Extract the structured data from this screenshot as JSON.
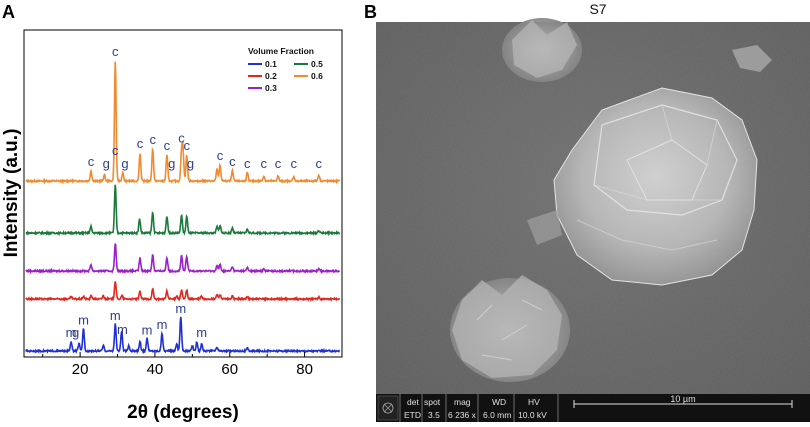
{
  "panel_a": {
    "letter": "A",
    "chart_data": {
      "type": "line",
      "xlabel": "2θ (degrees)",
      "ylabel": "Intensity (a.u.)",
      "xlim": [
        5,
        90
      ],
      "xticks": [
        20,
        40,
        60,
        80
      ],
      "legend": {
        "title": "Volume Fraction",
        "placement": "top-right",
        "entries": [
          {
            "name": "0.1",
            "color": "#1f2fd6"
          },
          {
            "name": "0.5",
            "color": "#1a7a3c"
          },
          {
            "name": "0.2",
            "color": "#e3261e"
          },
          {
            "name": "0.6",
            "color": "#f28a2e"
          },
          {
            "name": "0.3",
            "color": "#9b20c8"
          }
        ]
      },
      "series": [
        {
          "name": "0.6",
          "color": "#f28a2e",
          "peaks": [
            [
              22.9,
              10
            ],
            [
              26.5,
              6
            ],
            [
              29.4,
              120
            ],
            [
              31.4,
              8
            ],
            [
              36.0,
              28
            ],
            [
              39.4,
              32
            ],
            [
              43.2,
              26
            ],
            [
              47.1,
              28
            ],
            [
              47.5,
              30
            ],
            [
              48.5,
              26
            ],
            [
              56.6,
              12
            ],
            [
              57.4,
              16
            ],
            [
              60.7,
              10
            ],
            [
              64.7,
              8
            ],
            [
              69.1,
              5
            ],
            [
              72.9,
              5
            ],
            [
              77.1,
              4
            ],
            [
              83.8,
              6
            ]
          ]
        },
        {
          "name": "0.5",
          "color": "#1a7a3c",
          "peaks": [
            [
              22.9,
              10
            ],
            [
              29.4,
              75
            ],
            [
              35.9,
              22
            ],
            [
              39.4,
              32
            ],
            [
              43.2,
              26
            ],
            [
              47.1,
              28
            ],
            [
              48.5,
              26
            ],
            [
              56.6,
              10
            ],
            [
              57.4,
              12
            ],
            [
              60.7,
              8
            ],
            [
              64.7,
              6
            ],
            [
              83.8,
              4
            ]
          ]
        },
        {
          "name": "0.3",
          "color": "#9b20c8",
          "peaks": [
            [
              22.9,
              12
            ],
            [
              29.4,
              52
            ],
            [
              36.0,
              24
            ],
            [
              39.4,
              30
            ],
            [
              43.2,
              25
            ],
            [
              47.1,
              28
            ],
            [
              48.5,
              27
            ],
            [
              56.6,
              10
            ],
            [
              57.4,
              12
            ],
            [
              60.7,
              8
            ],
            [
              64.7,
              6
            ],
            [
              69.1,
              4
            ],
            [
              83.8,
              4
            ]
          ]
        },
        {
          "name": "0.2",
          "color": "#e3261e",
          "peaks": [
            [
              17.6,
              4
            ],
            [
              20.9,
              5
            ],
            [
              23.0,
              6
            ],
            [
              26.2,
              6
            ],
            [
              29.4,
              32
            ],
            [
              31.2,
              6
            ],
            [
              36.0,
              14
            ],
            [
              39.4,
              18
            ],
            [
              43.2,
              14
            ],
            [
              45.8,
              6
            ],
            [
              47.1,
              16
            ],
            [
              48.5,
              16
            ],
            [
              52.4,
              5
            ],
            [
              56.6,
              8
            ],
            [
              57.4,
              8
            ],
            [
              60.7,
              5
            ],
            [
              64.7,
              4
            ],
            [
              83.8,
              3
            ]
          ]
        },
        {
          "name": "0.1",
          "color": "#1f2fd6",
          "peaks": [
            [
              17.6,
              10
            ],
            [
              19.7,
              8
            ],
            [
              20.9,
              25
            ],
            [
              26.2,
              6
            ],
            [
              29.4,
              30
            ],
            [
              31.1,
              22
            ],
            [
              33.0,
              6
            ],
            [
              36.0,
              10
            ],
            [
              37.9,
              14
            ],
            [
              41.9,
              20
            ],
            [
              45.8,
              8
            ],
            [
              46.9,
              38
            ],
            [
              50.0,
              6
            ],
            [
              51.2,
              10
            ],
            [
              52.5,
              8
            ],
            [
              56.6,
              4
            ],
            [
              64.7,
              3
            ]
          ]
        }
      ],
      "annotations": [
        {
          "text": "c",
          "x": 29.4,
          "series": "0.6"
        },
        {
          "text": "c",
          "x": 22.9,
          "series": "0.6"
        },
        {
          "text": "g",
          "x": 27.0,
          "series": "0.6"
        },
        {
          "text": "c",
          "x": 29.4,
          "series": "0.6",
          "level": "low"
        },
        {
          "text": "g",
          "x": 32.0,
          "series": "0.6"
        },
        {
          "text": "c",
          "x": 36.0,
          "series": "0.6"
        },
        {
          "text": "c",
          "x": 39.4,
          "series": "0.6"
        },
        {
          "text": "c",
          "x": 43.2,
          "series": "0.6"
        },
        {
          "text": "g",
          "x": 44.5,
          "series": "0.6"
        },
        {
          "text": "c",
          "x": 47.1,
          "series": "0.6"
        },
        {
          "text": "c",
          "x": 48.5,
          "series": "0.6"
        },
        {
          "text": "g",
          "x": 49.5,
          "series": "0.6"
        },
        {
          "text": "c",
          "x": 57.4,
          "series": "0.6"
        },
        {
          "text": "c",
          "x": 60.7,
          "series": "0.6"
        },
        {
          "text": "c",
          "x": 64.7,
          "series": "0.6"
        },
        {
          "text": "c",
          "x": 69.1,
          "series": "0.6"
        },
        {
          "text": "c",
          "x": 72.9,
          "series": "0.6"
        },
        {
          "text": "c",
          "x": 77.1,
          "series": "0.6"
        },
        {
          "text": "c",
          "x": 83.8,
          "series": "0.6"
        },
        {
          "text": "m",
          "x": 17.6,
          "series": "0.1"
        },
        {
          "text": "g",
          "x": 18.8,
          "series": "0.1"
        },
        {
          "text": "m",
          "x": 20.9,
          "series": "0.1"
        },
        {
          "text": "m",
          "x": 29.4,
          "series": "0.1"
        },
        {
          "text": "m",
          "x": 31.3,
          "series": "0.1"
        },
        {
          "text": "m",
          "x": 37.9,
          "series": "0.1"
        },
        {
          "text": "m",
          "x": 41.9,
          "series": "0.1"
        },
        {
          "text": "m",
          "x": 46.9,
          "series": "0.1"
        },
        {
          "text": "m",
          "x": 52.5,
          "series": "0.1"
        }
      ]
    }
  },
  "panel_b": {
    "letter": "B",
    "title": "S7",
    "databar": {
      "det_label": "det",
      "det_value": "ETD",
      "spot_label": "spot",
      "spot_value": "3.5",
      "mag_label": "mag",
      "mag_value": "6 236 x",
      "wd_label": "WD",
      "wd_value": "6.0 mm",
      "hv_label": "HV",
      "hv_value": "10.0 kV",
      "scale_label": "10 µm"
    }
  }
}
